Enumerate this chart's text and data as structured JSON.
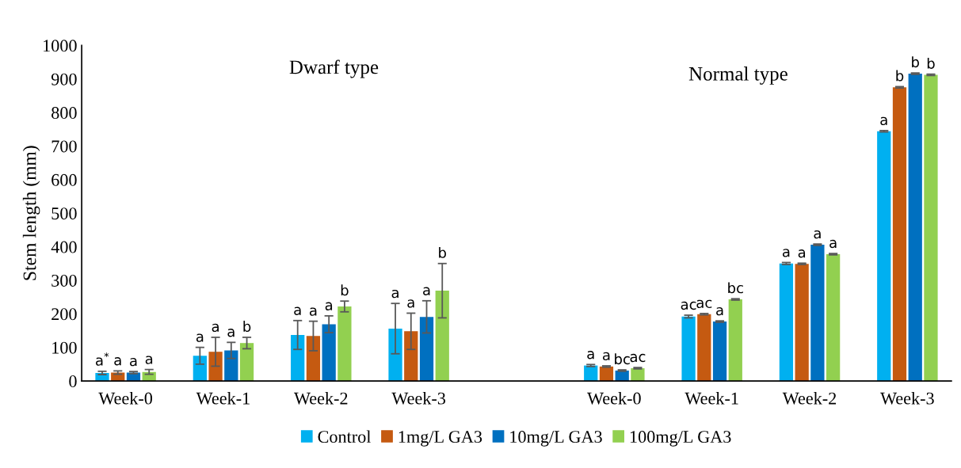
{
  "chart_data": {
    "type": "bar",
    "ylabel": "Stem length (mm)",
    "categories": [
      "Week-0",
      "Week-1",
      "Week-2",
      "Week-3",
      null,
      "Week-0",
      "Week-1",
      "Week-2",
      "Week-3"
    ],
    "series": [
      {
        "name": "Control",
        "color": "#00b0f0",
        "values": [
          24,
          75,
          137,
          156,
          null,
          46,
          192,
          350,
          744
        ],
        "errors": [
          5,
          25,
          43,
          75,
          null,
          3,
          4,
          3,
          2
        ],
        "value_labels": [
          "a$^{*}$",
          "a",
          "a",
          "a",
          null,
          "a",
          "ac",
          "a",
          "a"
        ]
      },
      {
        "name": "1mg/L GA3",
        "color": "#c55a11",
        "values": [
          25,
          87,
          134,
          148,
          null,
          43,
          199,
          349,
          875
        ],
        "errors": [
          5,
          43,
          44,
          54,
          null,
          2,
          2,
          2,
          2
        ],
        "value_labels": [
          "a",
          "a",
          "a",
          "a",
          null,
          "a",
          "ac",
          "a",
          "b"
        ]
      },
      {
        "name": "10mg/L GA3",
        "color": "#0070c0",
        "values": [
          25,
          91,
          169,
          191,
          null,
          31,
          177,
          406,
          916
        ],
        "errors": [
          3,
          24,
          25,
          48,
          null,
          2,
          2,
          2,
          2
        ],
        "value_labels": [
          "a",
          "a",
          "a",
          "a",
          null,
          "bc",
          "a",
          "a",
          "b"
        ]
      },
      {
        "name": "100mg/L GA3",
        "color": "#92d050",
        "values": [
          27,
          113,
          222,
          269,
          null,
          38,
          243,
          378,
          912
        ],
        "errors": [
          7,
          17,
          16,
          81,
          null,
          2,
          2,
          2,
          2
        ],
        "value_labels": [
          "a",
          "b",
          "b",
          "b",
          null,
          "ac",
          "bc",
          "a",
          "b"
        ]
      }
    ],
    "ylim": [
      0,
      1000
    ],
    "yticks": [
      0,
      100,
      200,
      300,
      400,
      500,
      600,
      700,
      800,
      900,
      1000
    ],
    "annotations": [
      "Dwarf type",
      "Normal type"
    ],
    "legend": "bottom",
    "grid": false
  }
}
